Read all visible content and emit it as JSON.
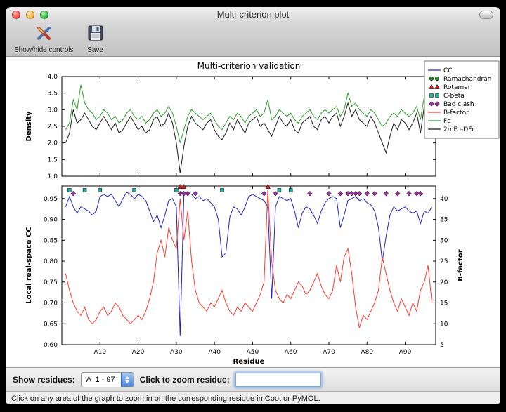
{
  "window": {
    "title": "Multi-criterion plot"
  },
  "toolbar": {
    "items": [
      {
        "icon": "show-hide-controls-icon",
        "label": "Show/hide controls"
      },
      {
        "icon": "save-icon",
        "label": "Save"
      }
    ]
  },
  "controls": {
    "show_residues_label": "Show residues:",
    "residue_range": "A  1 - 97",
    "zoom_prompt": "Click to zoom residue:",
    "zoom_value": ""
  },
  "status": {
    "message": "Click on any area of the graph to zoom in on the corresponding residue in Coot or PyMOL."
  },
  "chart_data": {
    "title": "Multi-criterion validation",
    "xlabel": "Residue",
    "x_range": [
      1,
      97
    ],
    "x_ticks": [
      10,
      20,
      30,
      40,
      50,
      60,
      70,
      80,
      90
    ],
    "x_tick_prefix": "A",
    "legend_position": "upper right",
    "legend": [
      {
        "label": "CC",
        "kind": "line",
        "color": "#2323cc"
      },
      {
        "label": "Ramachandran",
        "kind": "marker",
        "shape": "circle",
        "color": "#1e8c1e"
      },
      {
        "label": "Rotamer",
        "kind": "marker",
        "shape": "triangle",
        "color": "#cc2222"
      },
      {
        "label": "C-beta",
        "kind": "marker",
        "shape": "square",
        "color": "#1fb0a6"
      },
      {
        "label": "Bad clash",
        "kind": "marker",
        "shape": "diamond",
        "color": "#993399"
      },
      {
        "label": "B-factor",
        "kind": "line",
        "color": "#ff3b30"
      },
      {
        "label": "Fc",
        "kind": "line",
        "color": "#2ca12c"
      },
      {
        "label": "2mFo-DFc",
        "kind": "line",
        "color": "#1a1a1a"
      }
    ],
    "panels": [
      {
        "name": "density",
        "type": "line",
        "ylabel": "Density",
        "ylim": [
          1.0,
          4.0
        ],
        "yticks": [
          1.0,
          1.5,
          2.0,
          2.5,
          3.0,
          3.5,
          4.0
        ],
        "series": [
          {
            "name": "Fc",
            "color": "#2ca12c",
            "values": [
              2.4,
              2.6,
              3.3,
              3.0,
              3.75,
              3.2,
              3.0,
              2.9,
              2.7,
              2.8,
              3.0,
              2.9,
              2.7,
              2.8,
              2.6,
              2.7,
              2.9,
              3.0,
              2.8,
              2.7,
              2.8,
              2.6,
              2.7,
              2.9,
              3.0,
              2.8,
              2.9,
              3.1,
              2.9,
              2.5,
              2.0,
              2.4,
              2.8,
              3.0,
              2.9,
              2.8,
              2.7,
              2.8,
              2.9,
              2.7,
              2.5,
              2.4,
              2.6,
              2.8,
              2.7,
              2.9,
              2.8,
              2.6,
              2.8,
              2.9,
              3.0,
              2.8,
              2.9,
              3.3,
              2.7,
              2.8,
              3.0,
              2.9,
              2.8,
              2.9,
              2.7,
              2.6,
              2.8,
              2.9,
              3.0,
              2.8,
              2.7,
              2.9,
              3.0,
              2.9,
              3.0,
              3.1,
              2.8,
              3.0,
              3.5,
              3.1,
              3.2,
              3.0,
              2.9,
              2.8,
              3.0,
              2.9,
              2.7,
              2.5,
              2.6,
              2.8,
              2.9,
              2.8,
              3.0,
              2.9,
              2.8,
              2.9,
              3.1,
              2.7,
              3.4,
              3.0,
              3.1
            ]
          },
          {
            "name": "2mFo-DFc",
            "color": "#1a1a1a",
            "values": [
              2.0,
              2.3,
              3.0,
              2.6,
              2.7,
              2.9,
              2.7,
              2.5,
              2.4,
              2.6,
              2.8,
              2.6,
              2.4,
              2.6,
              2.3,
              2.4,
              2.6,
              2.8,
              2.6,
              2.4,
              2.5,
              2.3,
              2.4,
              2.7,
              2.8,
              2.5,
              2.6,
              2.9,
              2.6,
              2.0,
              1.1,
              1.9,
              2.5,
              2.8,
              2.6,
              2.5,
              2.4,
              2.6,
              2.7,
              2.4,
              2.2,
              2.1,
              2.3,
              2.6,
              2.4,
              2.7,
              2.5,
              2.3,
              2.6,
              2.7,
              2.8,
              2.5,
              2.6,
              2.4,
              2.2,
              2.5,
              2.8,
              2.6,
              2.5,
              2.7,
              2.4,
              2.3,
              2.6,
              2.7,
              2.8,
              2.5,
              2.4,
              2.7,
              2.8,
              2.6,
              2.8,
              2.9,
              2.5,
              2.8,
              3.2,
              2.8,
              3.0,
              2.7,
              2.6,
              2.5,
              2.8,
              2.6,
              2.3,
              2.0,
              1.7,
              2.2,
              2.6,
              2.4,
              2.7,
              2.6,
              2.4,
              2.6,
              2.9,
              2.3,
              3.1,
              2.6,
              2.9
            ]
          }
        ]
      },
      {
        "name": "cc_bfactor",
        "type": "line+scatter",
        "ylabel_left": "Local real-space CC",
        "ylim_left": [
          0.6,
          0.98
        ],
        "yticks_left": [
          0.6,
          0.65,
          0.7,
          0.75,
          0.8,
          0.85,
          0.9,
          0.95
        ],
        "ylabel_right": "B-factor",
        "ylim_right": [
          5,
          43
        ],
        "yticks_right": [
          5,
          10,
          15,
          20,
          25,
          30,
          35,
          40
        ],
        "series": [
          {
            "name": "CC",
            "axis": "left",
            "color": "#2323cc",
            "values": [
              0.93,
              0.955,
              0.93,
              0.915,
              0.93,
              0.925,
              0.92,
              0.91,
              0.92,
              0.955,
              0.96,
              0.955,
              0.96,
              0.945,
              0.93,
              0.95,
              0.965,
              0.96,
              0.95,
              0.96,
              0.955,
              0.945,
              0.92,
              0.895,
              0.91,
              0.88,
              0.91,
              0.945,
              0.95,
              0.93,
              0.62,
              0.96,
              0.965,
              0.96,
              0.95,
              0.955,
              0.945,
              0.95,
              0.94,
              0.93,
              0.9,
              0.81,
              0.82,
              0.905,
              0.93,
              0.925,
              0.91,
              0.93,
              0.955,
              0.96,
              0.955,
              0.95,
              0.945,
              0.93,
              0.71,
              0.93,
              0.955,
              0.95,
              0.945,
              0.95,
              0.92,
              0.88,
              0.915,
              0.93,
              0.925,
              0.91,
              0.89,
              0.92,
              0.94,
              0.95,
              0.955,
              0.95,
              0.88,
              0.91,
              0.945,
              0.95,
              0.955,
              0.945,
              0.95,
              0.94,
              0.935,
              0.92,
              0.88,
              0.8,
              0.86,
              0.91,
              0.93,
              0.92,
              0.925,
              0.93,
              0.92,
              0.915,
              0.92,
              0.89,
              0.92,
              0.915,
              0.93
            ]
          },
          {
            "name": "B-factor",
            "axis": "right",
            "color": "#ff3b30",
            "values": [
              22,
              18,
              15,
              13,
              12,
              14,
              11,
              10,
              11,
              13,
              14,
              12,
              13,
              15,
              14,
              12,
              11,
              10,
              11,
              12,
              11,
              13,
              16,
              20,
              27,
              30,
              26,
              33,
              30,
              28,
              40,
              30,
              37,
              25,
              18,
              15,
              14,
              13,
              15,
              14,
              16,
              18,
              15,
              13,
              12,
              14,
              13,
              15,
              14,
              13,
              15,
              17,
              20,
              42,
              25,
              18,
              16,
              15,
              17,
              16,
              18,
              20,
              19,
              17,
              18,
              20,
              22,
              19,
              17,
              16,
              18,
              24,
              20,
              26,
              28,
              22,
              14,
              9,
              12,
              11,
              13,
              15,
              18,
              26,
              22,
              18,
              15,
              13,
              16,
              14,
              12,
              15,
              13,
              18,
              20,
              24,
              15
            ]
          }
        ],
        "markers": [
          {
            "name": "Ramachandran",
            "shape": "circle",
            "color": "#1e8c1e",
            "y": 0.984,
            "residues": []
          },
          {
            "name": "Rotamer",
            "shape": "triangle",
            "color": "#cc2222",
            "y": 0.978,
            "residues": [
              31,
              32,
              54
            ]
          },
          {
            "name": "C-beta",
            "shape": "square",
            "color": "#1fb0a6",
            "y": 0.97,
            "residues": [
              2,
              6,
              10,
              19,
              30,
              42,
              57,
              60
            ]
          },
          {
            "name": "Bad clash",
            "shape": "diamond",
            "color": "#993399",
            "y": 0.962,
            "residues": [
              3,
              31,
              32,
              33,
              35,
              53,
              56,
              65,
              70,
              73,
              75,
              76,
              77,
              78,
              80,
              82,
              85,
              88,
              91,
              93,
              94
            ]
          }
        ]
      }
    ]
  }
}
